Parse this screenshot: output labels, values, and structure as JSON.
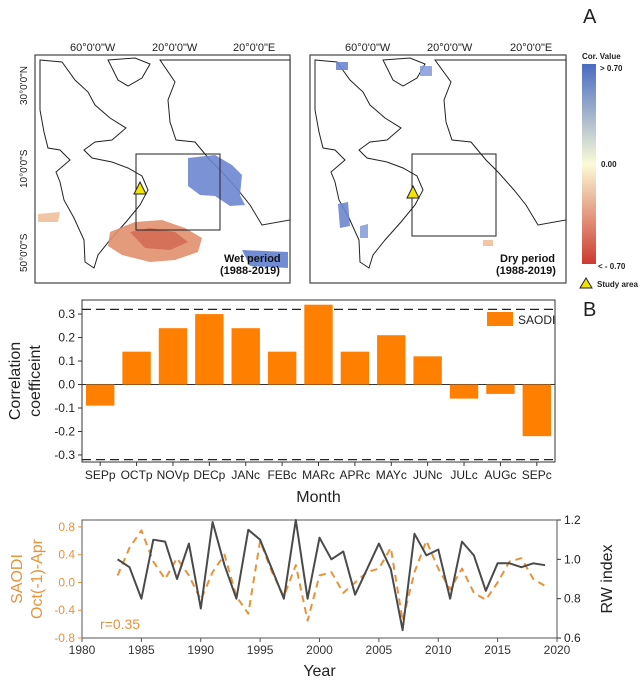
{
  "panel_labels": {
    "a": "A",
    "b": "B"
  },
  "maps": {
    "lon_ticks": [
      "60°0'0\"W",
      "20°0'0\"W",
      "20°0'0\"E"
    ],
    "lat_ticks": [
      "30°0'0\"N",
      "10°0'0\"S",
      "50°0'0\"S"
    ],
    "wet": {
      "title": "Wet period",
      "years": "(1988-2019)"
    },
    "dry": {
      "title": "Dry period",
      "years": "(1988-2019)"
    },
    "legend": {
      "title": "Cor. Value",
      "max": "> 0.70",
      "mid": "0.00",
      "min": "< - 0.70",
      "study_area": "Study area",
      "colors": {
        "high": "#4a6bc0",
        "mid": "#fbfbd8",
        "low": "#cc3a2e"
      }
    }
  },
  "chart_data": [
    {
      "type": "bar",
      "categories": [
        "SEPp",
        "OCTp",
        "NOVp",
        "DECp",
        "JANc",
        "FEBc",
        "MARc",
        "APRc",
        "MAYc",
        "JUNc",
        "JULc",
        "AUGc",
        "SEPc"
      ],
      "series": [
        {
          "name": "SAODI",
          "values": [
            -0.09,
            0.14,
            0.24,
            0.3,
            0.24,
            0.14,
            0.34,
            0.14,
            0.21,
            0.12,
            -0.06,
            -0.04,
            -0.22
          ]
        }
      ],
      "xlabel": "Month",
      "ylabel": "Correlation coefficeint",
      "ylim": [
        -0.33,
        0.36
      ],
      "yticks": [
        "0.3",
        "0.2",
        "0.1",
        "0.0",
        "-0.1",
        "-0.2",
        "-0.3"
      ],
      "significance_lines": [
        0.32,
        -0.32
      ],
      "legend_position": "top-right",
      "color": "#ff7f00"
    },
    {
      "type": "line",
      "x": [
        1983,
        1984,
        1985,
        1986,
        1987,
        1988,
        1989,
        1990,
        1991,
        1992,
        1993,
        1994,
        1995,
        1996,
        1997,
        1998,
        1999,
        2000,
        2001,
        2002,
        2003,
        2004,
        2005,
        2006,
        2007,
        2008,
        2009,
        2010,
        2011,
        2012,
        2013,
        2014,
        2015,
        2016,
        2017,
        2018,
        2019
      ],
      "series": [
        {
          "name": "SAODI Oct(-1)-Apr",
          "axis": "left",
          "style": "dashed",
          "color": "#e8923a",
          "values": [
            0.1,
            0.5,
            0.75,
            0.3,
            0.05,
            0.35,
            0.1,
            -0.25,
            0.15,
            0.4,
            -0.2,
            -0.45,
            0.6,
            0.15,
            -0.2,
            0.25,
            -0.55,
            0.1,
            0.15,
            -0.15,
            0.0,
            0.15,
            0.2,
            0.5,
            -0.55,
            0.15,
            0.6,
            0.2,
            -0.1,
            0.2,
            -0.15,
            -0.25,
            0.0,
            0.3,
            0.35,
            0.05,
            -0.05
          ]
        },
        {
          "name": "RW index",
          "axis": "right",
          "style": "solid",
          "color": "#4a4a4a",
          "values": [
            1.0,
            0.96,
            0.8,
            1.1,
            1.09,
            0.9,
            1.08,
            0.75,
            1.19,
            0.97,
            0.8,
            1.15,
            1.1,
            0.95,
            0.8,
            1.2,
            0.8,
            1.11,
            1.0,
            1.04,
            0.82,
            0.95,
            1.08,
            0.95,
            0.64,
            1.13,
            1.02,
            1.05,
            0.8,
            1.09,
            1.02,
            0.84,
            0.98,
            0.98,
            0.96,
            0.98,
            0.97
          ]
        }
      ],
      "xlabel": "Year",
      "ylabel_left": "SAODI Oct(-1)-Apr",
      "ylabel_right": "RW index",
      "xlim": [
        1980,
        2020
      ],
      "xticks": [
        "1980",
        "1985",
        "1990",
        "1995",
        "2000",
        "2005",
        "2010",
        "2015",
        "2020"
      ],
      "ylim_left": [
        -0.8,
        0.9
      ],
      "yticks_left": [
        "0.8",
        "0.4",
        "0.0",
        "-0.4",
        "-0.8"
      ],
      "ylim_right": [
        0.6,
        1.2
      ],
      "yticks_right": [
        "1.2",
        "1.0",
        "0.8",
        "0.6"
      ],
      "annotation": "r=0.35"
    }
  ]
}
